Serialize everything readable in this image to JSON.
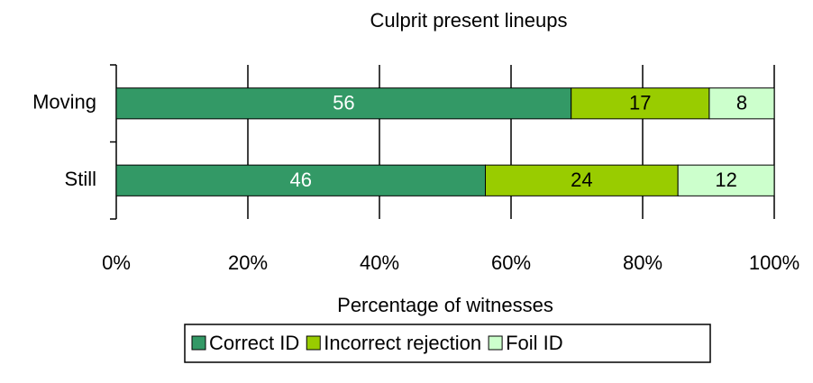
{
  "chart_data": {
    "type": "bar",
    "orientation": "horizontal",
    "stack": "percent",
    "title": "Culprit present lineups",
    "x_label": "Percentage of witnesses",
    "categories": [
      "Moving",
      "Still"
    ],
    "series": [
      {
        "name": "Correct ID",
        "color": "#339966",
        "label_color": "#ffffff",
        "values": [
          56,
          46
        ]
      },
      {
        "name": "Incorrect rejection",
        "color": "#99cc00",
        "label_color": "#000000",
        "values": [
          17,
          24
        ]
      },
      {
        "name": "Foil ID",
        "color": "#ccffcc",
        "label_color": "#000000",
        "values": [
          8,
          12
        ]
      }
    ],
    "xlim": [
      0,
      100
    ],
    "xticks": [
      {
        "value": 0,
        "label": "0%"
      },
      {
        "value": 20,
        "label": "20%"
      },
      {
        "value": 40,
        "label": "40%"
      },
      {
        "value": 60,
        "label": "60%"
      },
      {
        "value": 80,
        "label": "80%"
      },
      {
        "value": 100,
        "label": "100%"
      }
    ],
    "grid": true,
    "legend": "bottom"
  }
}
